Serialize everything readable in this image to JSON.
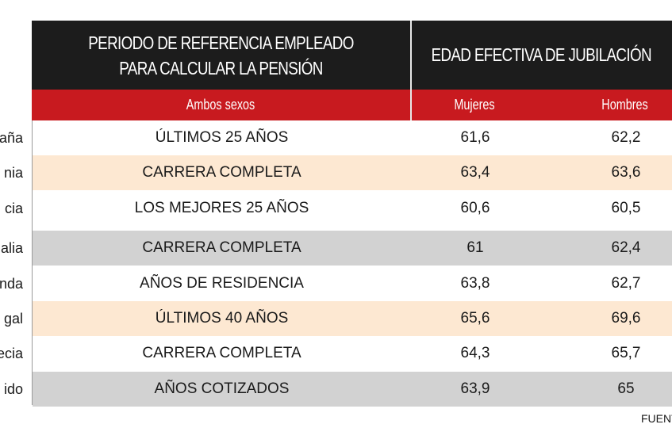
{
  "header": {
    "period_line1": "PERIODO DE REFERENCIA EMPLEADO",
    "period_line2": "PARA CALCULAR LA PENSIÓN",
    "age_title": "EDAD EFECTIVA DE JUBILACIÓN"
  },
  "subheader": {
    "both_sexes": "Ambos sexos",
    "women": "Mujeres",
    "men": "Hombres"
  },
  "rows": [
    {
      "country": "aña",
      "period": "ÚLTIMOS 25 AÑOS",
      "women": "61,6",
      "men": "62,2",
      "bg": "white"
    },
    {
      "country": "nia",
      "period": "CARRERA COMPLETA",
      "women": "63,4",
      "men": "63,6",
      "bg": "peach"
    },
    {
      "country": "cia",
      "period": "LOS MEJORES 25 AÑOS",
      "women": "60,6",
      "men": "60,5",
      "bg": "white"
    },
    {
      "country": "alia",
      "period": "CARRERA COMPLETA",
      "women": "61",
      "men": "62,4",
      "bg": "gray"
    },
    {
      "country": "nda",
      "period": "AÑOS DE RESIDENCIA",
      "women": "63,8",
      "men": "62,7",
      "bg": "white"
    },
    {
      "country": "gal",
      "period": "ÚLTIMOS 40 AÑOS",
      "women": "65,6",
      "men": "69,6",
      "bg": "peach"
    },
    {
      "country": "ecia",
      "period": "CARRERA COMPLETA",
      "women": "64,3",
      "men": "65,7",
      "bg": "white"
    },
    {
      "country": "ido",
      "period": "AÑOS COTIZADOS",
      "women": "63,9",
      "men": "65",
      "bg": "gray"
    }
  ],
  "footer": {
    "source": "FUENT"
  },
  "colors": {
    "header_dark": "#1c1c1c",
    "header_red": "#c81a1f",
    "row_peach": "#fde8d2",
    "row_gray": "#d2d2d2"
  }
}
